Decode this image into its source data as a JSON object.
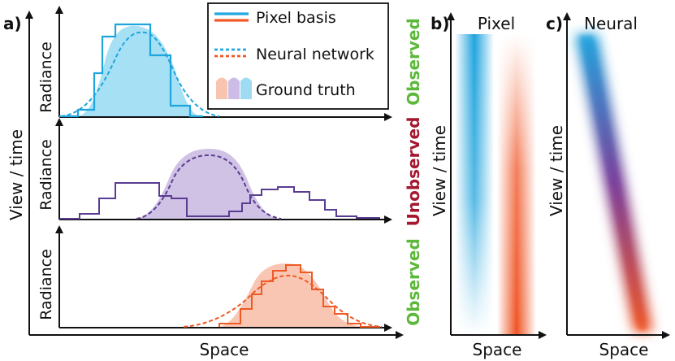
{
  "panels": {
    "a_label": "a)",
    "b_label": "b)",
    "c_label": "c)",
    "b_title": "Pixel",
    "c_title": "Neural"
  },
  "axes": {
    "y_label": "View / time",
    "x_label": "Space",
    "radiance": "Radiance"
  },
  "legend": {
    "items": [
      {
        "label": "Pixel basis",
        "colors": [
          "#22a8e0",
          "#f05a28"
        ]
      },
      {
        "label": "Neural network",
        "colors": [
          "#22a8e0",
          "#f05a28"
        ]
      },
      {
        "label": "Ground truth",
        "colors": [
          "#f8c4b0",
          "#cdbde6",
          "#9fdcf4"
        ]
      }
    ]
  },
  "rows": [
    {
      "status": "Observed",
      "status_color": "#5cb83a",
      "line_color": "#1fa5de",
      "fill_color": "#a6e0f5"
    },
    {
      "status": "Unobserved",
      "status_color": "#a3182f",
      "line_color": "#5b3c93",
      "fill_color": "#cfc2e4"
    },
    {
      "status": "Observed",
      "status_color": "#5cb83a",
      "line_color": "#ee5a24",
      "fill_color": "#f9c6b3"
    }
  ]
}
